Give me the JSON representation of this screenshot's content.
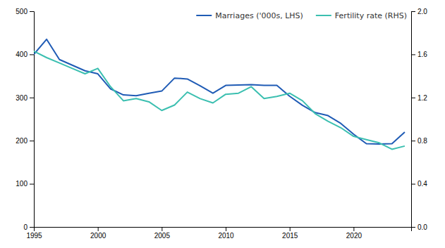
{
  "chart_data": {
    "type": "line",
    "x": [
      1995,
      1996,
      1997,
      1998,
      1999,
      2000,
      2001,
      2002,
      2003,
      2004,
      2005,
      2006,
      2007,
      2008,
      2009,
      2010,
      2011,
      2012,
      2013,
      2014,
      2015,
      2016,
      2017,
      2018,
      2019,
      2020,
      2021,
      2022,
      2023,
      2024
    ],
    "series": [
      {
        "name": "Marriages ('000s, LHS)",
        "color": "#1f5bb5",
        "values": [
          400,
          435,
          388,
          375,
          362,
          355,
          320,
          306,
          304,
          310,
          315,
          345,
          343,
          327,
          310,
          328,
          329,
          330,
          328,
          328,
          303,
          282,
          265,
          258,
          240,
          215,
          193,
          192,
          193,
          220
        ]
      },
      {
        "name": "Fertility rate (RHS)",
        "color": "#3bbfb0",
        "axis": "y2",
        "values": [
          1.63,
          1.57,
          1.52,
          1.47,
          1.42,
          1.47,
          1.3,
          1.17,
          1.19,
          1.16,
          1.08,
          1.13,
          1.25,
          1.19,
          1.15,
          1.23,
          1.24,
          1.3,
          1.19,
          1.21,
          1.24,
          1.17,
          1.05,
          0.98,
          0.92,
          0.84,
          0.81,
          0.78,
          0.72,
          0.75
        ]
      }
    ],
    "xlim": [
      1995,
      2024.5
    ],
    "xticks": [
      1995,
      2000,
      2005,
      2010,
      2015,
      2020
    ],
    "ylim": [
      0,
      500
    ],
    "yticks": [
      0,
      100,
      200,
      300,
      400,
      500
    ],
    "y2lim": [
      0.0,
      2.0
    ],
    "y2ticks": [
      {
        "value": 0.0,
        "label": "0.0"
      },
      0.4,
      0.8,
      1.2,
      1.6,
      {
        "value": 2.0,
        "label": "2.0"
      }
    ],
    "legend": "upper right",
    "grid": false
  }
}
